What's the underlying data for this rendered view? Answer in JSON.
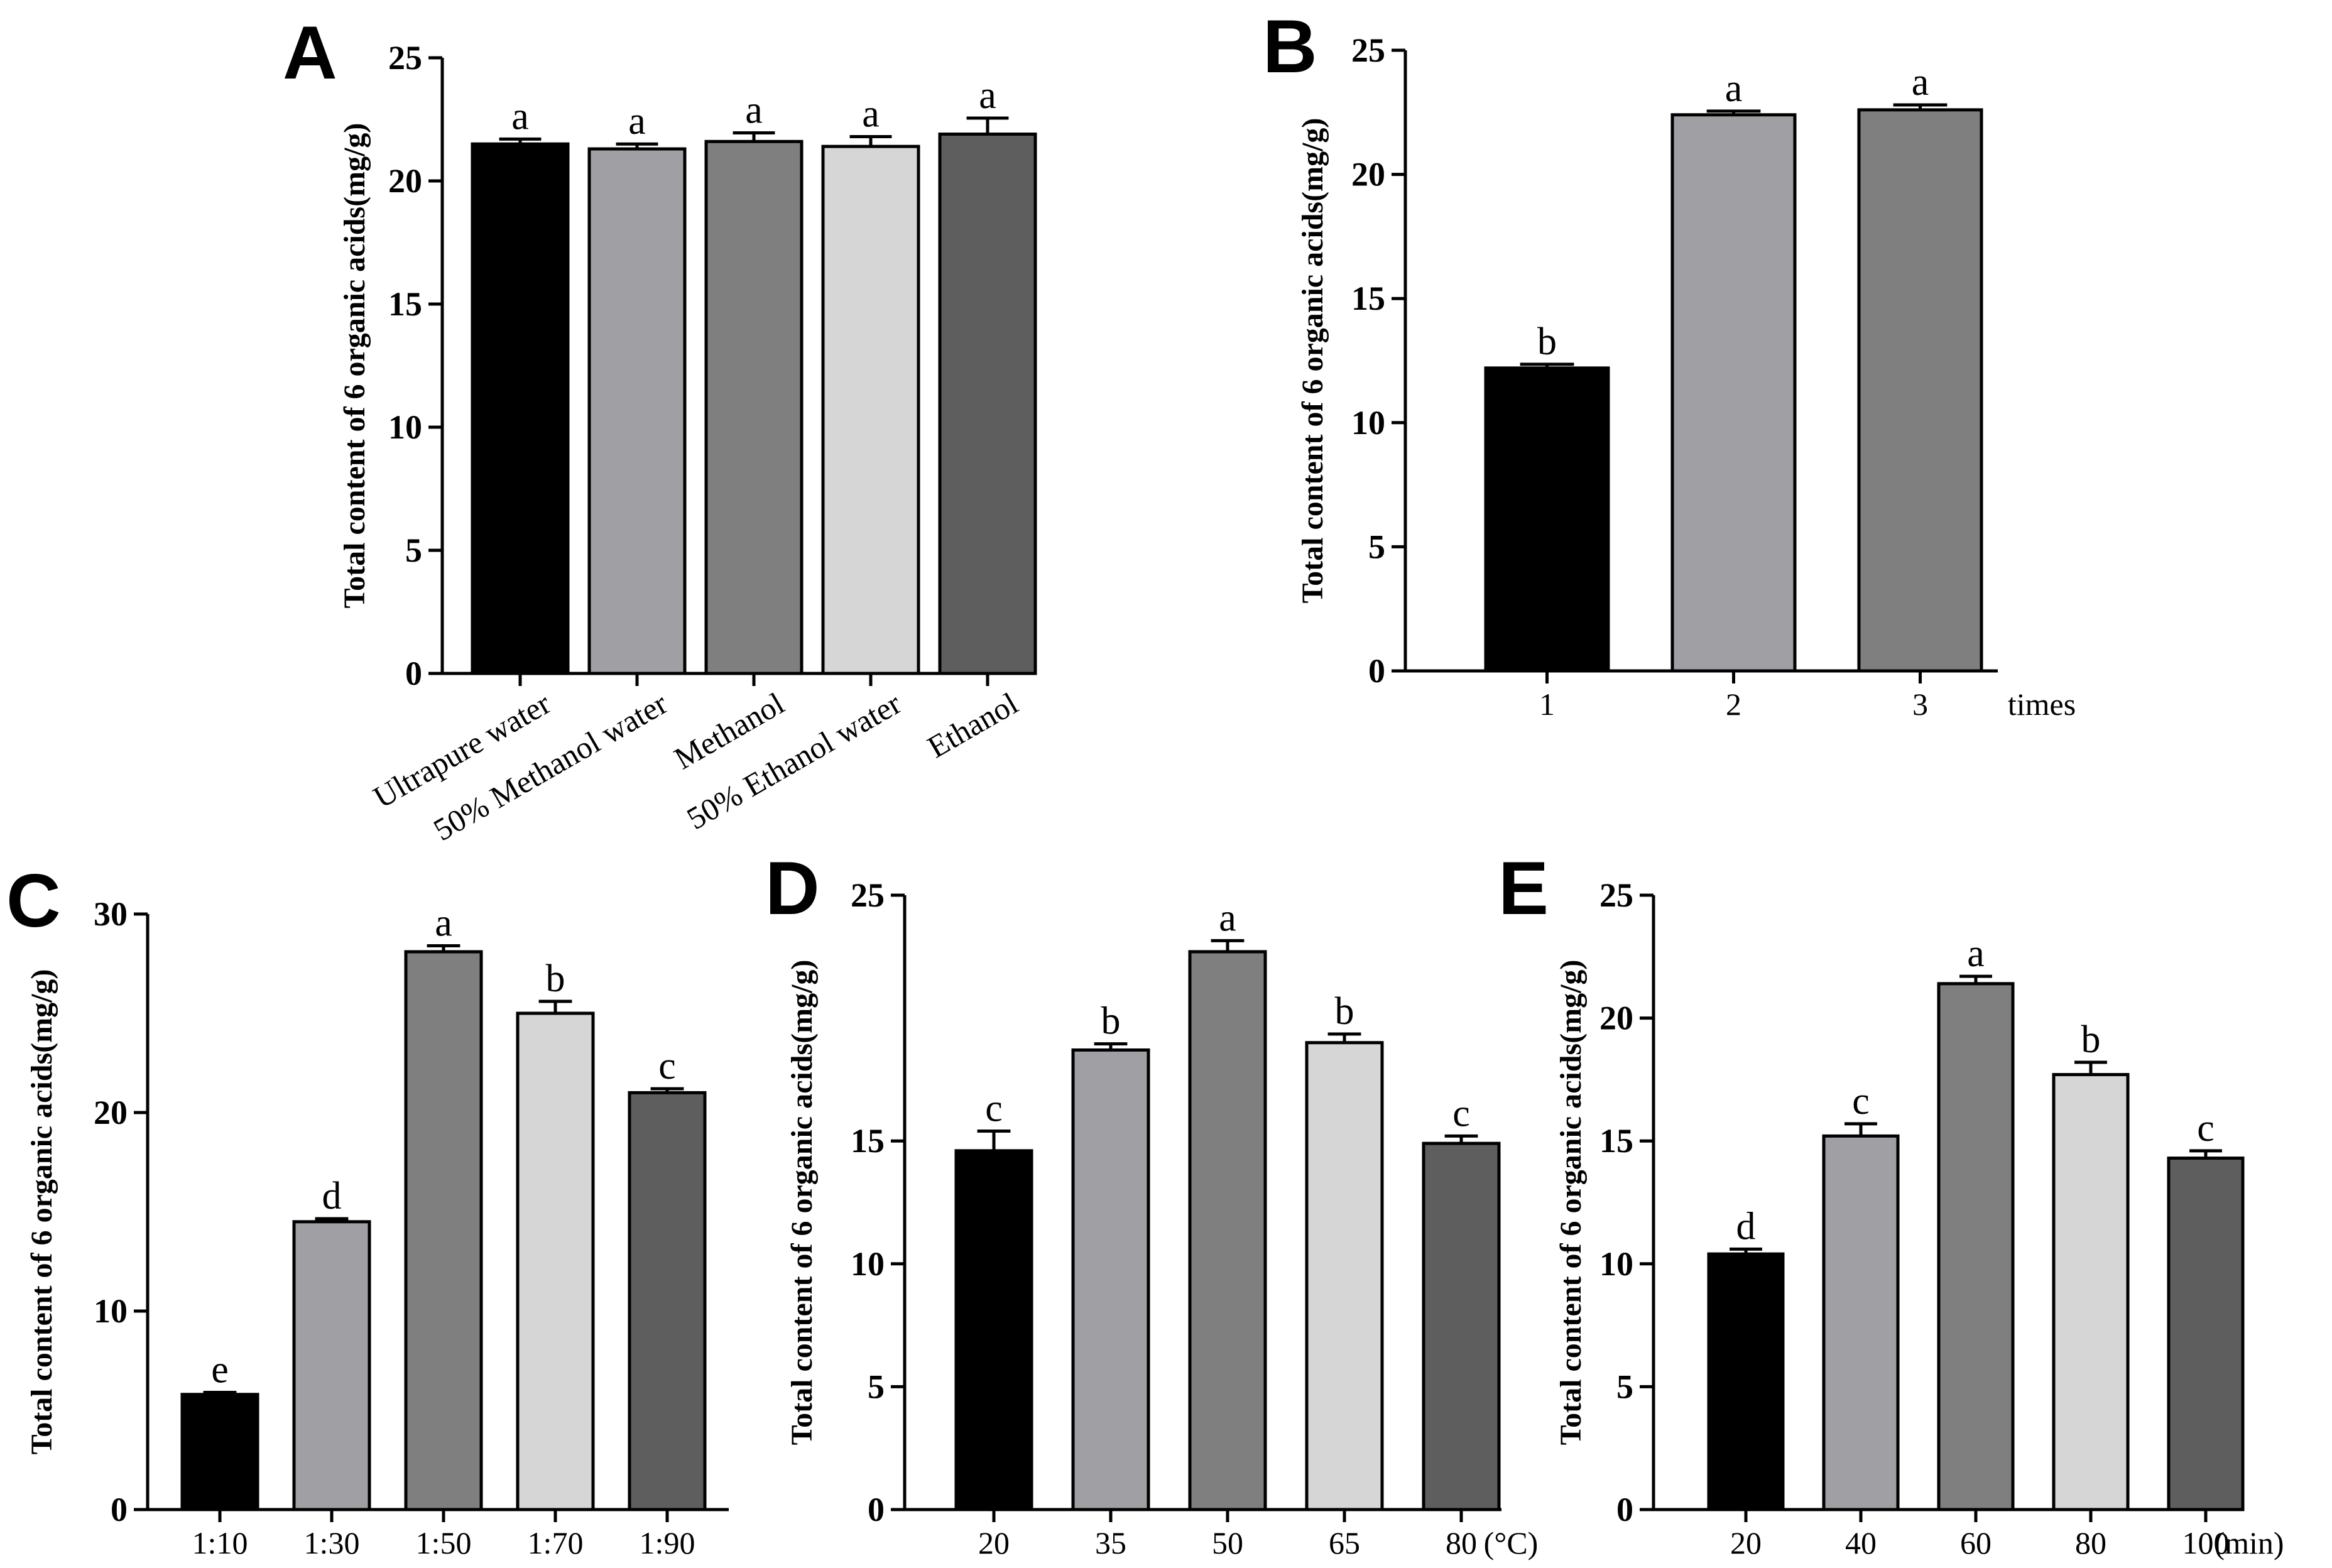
{
  "chart_data": [
    {
      "panel": "A",
      "type": "bar",
      "categories": [
        "Ultrapure water",
        "50% Methanol water",
        "Methanol",
        "50% Ethanol water",
        "Ethanol"
      ],
      "values": [
        21.5,
        21.3,
        21.6,
        21.4,
        21.9
      ],
      "errors": [
        0.2,
        0.2,
        0.35,
        0.4,
        0.65
      ],
      "letters": [
        "a",
        "a",
        "a",
        "a",
        "a"
      ],
      "colors": [
        "#000000",
        "#a0a0a4",
        "#7f7f7f",
        "#d6d6d6",
        "#5e5e5e"
      ],
      "ylabel": "Total content of 6 organic acids(mg/g)",
      "unit": "",
      "ylim": [
        0,
        25
      ],
      "yticks": [
        0,
        5,
        10,
        15,
        20,
        25
      ]
    },
    {
      "panel": "B",
      "type": "bar",
      "categories": [
        "1",
        "2",
        "3"
      ],
      "values": [
        12.2,
        22.4,
        22.6
      ],
      "errors": [
        0.15,
        0.15,
        0.2
      ],
      "letters": [
        "b",
        "a",
        "a"
      ],
      "colors": [
        "#000000",
        "#a0a0a4",
        "#7f7f7f"
      ],
      "ylabel": "Total content of 6 organic acids(mg/g)",
      "unit": "times",
      "ylim": [
        0,
        25
      ],
      "yticks": [
        0,
        5,
        10,
        15,
        20,
        25
      ]
    },
    {
      "panel": "C",
      "type": "bar",
      "categories": [
        "1:10",
        "1:30",
        "1:50",
        "1:70",
        "1:90"
      ],
      "values": [
        5.8,
        14.5,
        28.1,
        25.0,
        21.0
      ],
      "errors": [
        0.1,
        0.15,
        0.3,
        0.6,
        0.2
      ],
      "letters": [
        "e",
        "d",
        "a",
        "b",
        "c"
      ],
      "colors": [
        "#000000",
        "#a0a0a4",
        "#7f7f7f",
        "#d6d6d6",
        "#5e5e5e"
      ],
      "ylabel": "Total content of 6 organic acids(mg/g)",
      "unit": "",
      "ylim": [
        0,
        30
      ],
      "yticks": [
        0,
        10,
        20,
        30
      ]
    },
    {
      "panel": "D",
      "type": "bar",
      "categories": [
        "20",
        "35",
        "50",
        "65",
        "80"
      ],
      "values": [
        14.6,
        18.7,
        22.7,
        19.0,
        14.9
      ],
      "errors": [
        0.8,
        0.25,
        0.45,
        0.35,
        0.3
      ],
      "letters": [
        "c",
        "b",
        "a",
        "b",
        "c"
      ],
      "colors": [
        "#000000",
        "#a0a0a4",
        "#7f7f7f",
        "#d6d6d6",
        "#5e5e5e"
      ],
      "ylabel": "Total content of 6 organic acids(mg/g)",
      "unit": "(°C)",
      "ylim": [
        0,
        25
      ],
      "yticks": [
        0,
        5,
        10,
        15,
        25
      ]
    },
    {
      "panel": "E",
      "type": "bar",
      "categories": [
        "20",
        "40",
        "60",
        "80",
        "100"
      ],
      "values": [
        10.4,
        15.2,
        21.4,
        17.7,
        14.3
      ],
      "errors": [
        0.2,
        0.5,
        0.3,
        0.5,
        0.3
      ],
      "letters": [
        "d",
        "c",
        "a",
        "b",
        "c"
      ],
      "colors": [
        "#000000",
        "#a0a0a4",
        "#7f7f7f",
        "#d6d6d6",
        "#5e5e5e"
      ],
      "ylabel": "Total content of 6 organic acids(mg/g)",
      "unit": "(min)",
      "ylim": [
        0,
        25
      ],
      "yticks": [
        0,
        5,
        10,
        15,
        20,
        25
      ]
    }
  ]
}
